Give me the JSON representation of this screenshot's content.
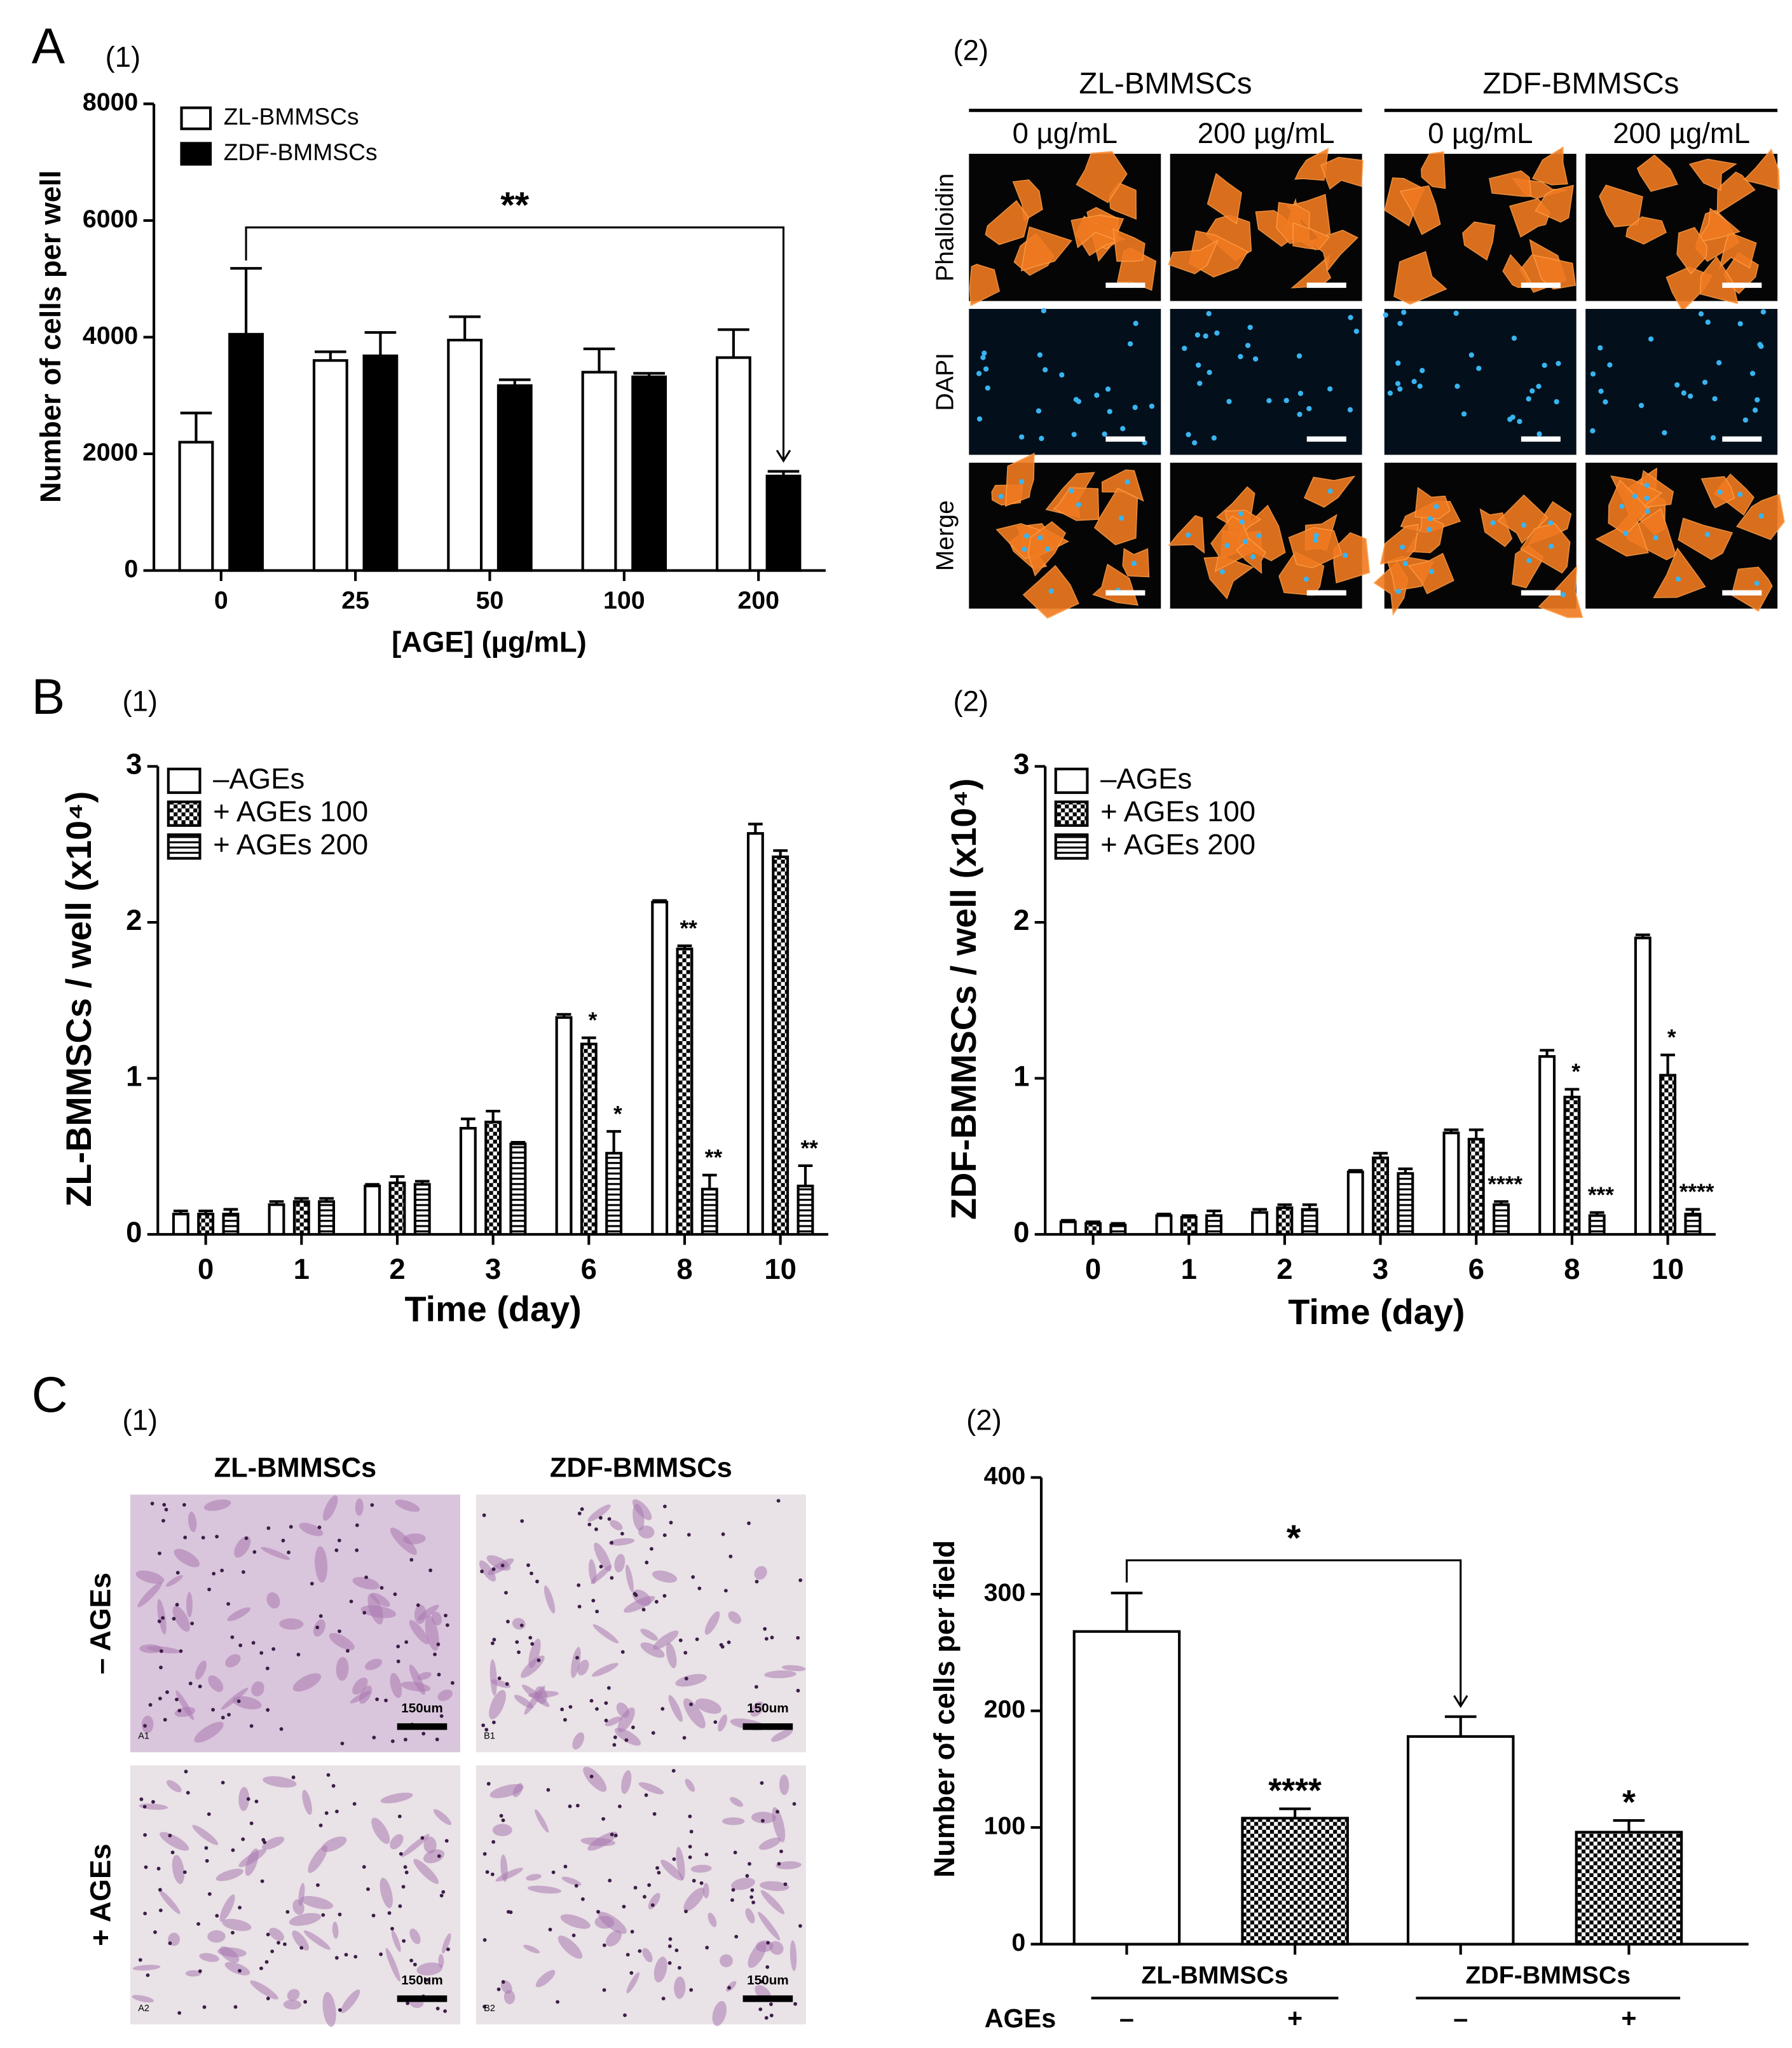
{
  "panel_letters": [
    "A",
    "B",
    "C"
  ],
  "chart_data": [
    {
      "type": "bar",
      "label": "(1)",
      "xlabel": "[AGE] (µg/mL)",
      "ylabel": "Number of cells per well",
      "categories": [
        "0",
        "25",
        "50",
        "100",
        "200"
      ],
      "series": [
        {
          "name": "ZL-BMMSCs",
          "color": "#ffffff",
          "values": [
            2200,
            3600,
            3950,
            3400,
            3650
          ],
          "errors": [
            500,
            150,
            400,
            400,
            480
          ]
        },
        {
          "name": "ZDF-BMMSCs",
          "color": "#000000",
          "values": [
            4050,
            3680,
            3170,
            3320,
            1620
          ],
          "errors": [
            1130,
            400,
            100,
            60,
            80
          ]
        }
      ],
      "ylim": [
        0,
        8000
      ],
      "yticks": [
        0,
        2000,
        4000,
        6000,
        8000
      ],
      "bracket_label": "**"
    },
    {
      "type": "bar",
      "label": "(1)",
      "xlabel": "Time (day)",
      "ylabel": "ZL-BMMSCs / well (x10⁴)",
      "categories": [
        "0",
        "1",
        "2",
        "3",
        "6",
        "8",
        "10"
      ],
      "series": [
        {
          "name": "–AGEs",
          "color": "#ffffff",
          "values": [
            0.13,
            0.19,
            0.31,
            0.68,
            1.39,
            2.13,
            2.57
          ],
          "errors": [
            0.02,
            0.02,
            0.01,
            0.06,
            0.02,
            0.01,
            0.06
          ]
        },
        {
          "name": "+ AGEs 100",
          "color": "#ffffff",
          "pattern": "checker",
          "values": [
            0.13,
            0.21,
            0.33,
            0.72,
            1.22,
            1.83,
            2.42
          ],
          "errors": [
            0.02,
            0.02,
            0.04,
            0.07,
            0.04,
            0.02,
            0.04
          ],
          "significance": [
            null,
            null,
            null,
            null,
            "*",
            "**",
            null
          ]
        },
        {
          "name": "+ AGEs 200",
          "color": "#ffffff",
          "pattern": "stripes",
          "values": [
            0.13,
            0.21,
            0.32,
            0.58,
            0.52,
            0.29,
            0.31
          ],
          "errors": [
            0.03,
            0.02,
            0.02,
            0.01,
            0.14,
            0.09,
            0.13
          ],
          "significance": [
            null,
            null,
            null,
            null,
            "*",
            "**",
            "**"
          ]
        }
      ],
      "ylim": [
        0,
        3
      ],
      "yticks": [
        0,
        1,
        2,
        3
      ]
    },
    {
      "type": "bar",
      "label": "(2)",
      "xlabel": "Time (day)",
      "ylabel": "ZDF-BMMSCs / well (x10⁴)",
      "categories": [
        "0",
        "1",
        "2",
        "3",
        "6",
        "8",
        "10"
      ],
      "series": [
        {
          "name": "–AGEs",
          "color": "#ffffff",
          "values": [
            0.08,
            0.12,
            0.14,
            0.4,
            0.65,
            1.14,
            1.9
          ],
          "errors": [
            0.01,
            0.01,
            0.02,
            0.01,
            0.02,
            0.04,
            0.02
          ]
        },
        {
          "name": "+ AGEs 100",
          "color": "#ffffff",
          "pattern": "checker",
          "values": [
            0.07,
            0.11,
            0.17,
            0.49,
            0.61,
            0.88,
            1.02
          ],
          "errors": [
            0.01,
            0.01,
            0.02,
            0.03,
            0.06,
            0.05,
            0.13
          ],
          "significance": [
            null,
            null,
            null,
            null,
            null,
            "*",
            "*"
          ]
        },
        {
          "name": "+ AGEs 200",
          "color": "#ffffff",
          "pattern": "stripes",
          "values": [
            0.06,
            0.12,
            0.16,
            0.39,
            0.19,
            0.12,
            0.13
          ],
          "errors": [
            0.01,
            0.03,
            0.03,
            0.03,
            0.02,
            0.02,
            0.03
          ],
          "significance": [
            null,
            null,
            null,
            null,
            "****",
            "***",
            "****"
          ]
        }
      ],
      "ylim": [
        0,
        3
      ],
      "yticks": [
        0,
        1,
        2,
        3
      ]
    },
    {
      "type": "bar",
      "label": "(2)",
      "ylabel": "Number of cells per field",
      "groups": [
        "ZL-BMMSCs",
        "ZDF-BMMSCs"
      ],
      "row_label": "AGEs",
      "categories": [
        "–",
        "+",
        "–",
        "+"
      ],
      "series": [
        {
          "colors": [
            "#ffffff",
            "#ffffff",
            "#ffffff",
            "#ffffff"
          ],
          "patterns": [
            null,
            "checker",
            null,
            "checker"
          ],
          "values": [
            268,
            108,
            178,
            96
          ],
          "errors": [
            33,
            8,
            17,
            10
          ],
          "significance": [
            null,
            "****",
            null,
            "*"
          ]
        }
      ],
      "ylim": [
        0,
        400
      ],
      "yticks": [
        0,
        100,
        200,
        300,
        400
      ],
      "bracket_label": "*"
    }
  ],
  "fluorescence_panel": {
    "label": "(2)",
    "groups": [
      "ZL-BMMSCs",
      "ZDF-BMMSCs"
    ],
    "columns": [
      "0 µg/mL",
      "200 µg/mL",
      "0 µg/mL",
      "200 µg/mL"
    ],
    "rows": [
      "Phalloidin",
      "DAPI",
      "Merge"
    ]
  },
  "histology_panel": {
    "label": "(1)",
    "columns": [
      "ZL-BMMSCs",
      "ZDF-BMMSCs"
    ],
    "rows": [
      "– AGEs",
      "+ AGEs"
    ],
    "tiles": [
      [
        "A1",
        "B1"
      ],
      [
        "A2",
        "B2"
      ]
    ],
    "scale_bar": "150um"
  }
}
